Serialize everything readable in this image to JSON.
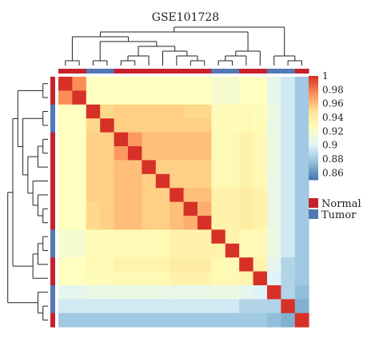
{
  "chart_data": {
    "type": "heatmap",
    "title": "GSE101728",
    "color_scale": {
      "min": 0.85,
      "max": 1.0,
      "ticks": [
        "1",
        "0.98",
        "0.96",
        "0.94",
        "0.92",
        "0.9",
        "0.88",
        "0.86"
      ],
      "colors": [
        "#4575b4",
        "#91bfdb",
        "#e0f3f8",
        "#ffffbf",
        "#fee090",
        "#fc8d59",
        "#d73027"
      ]
    },
    "groups": [
      "N",
      "N",
      "T",
      "T",
      "N",
      "N",
      "N",
      "N",
      "N",
      "N",
      "N",
      "T",
      "T",
      "N",
      "N",
      "T",
      "T",
      "N"
    ],
    "legend": [
      {
        "label": "Normal",
        "color": "#c4232c"
      },
      {
        "label": "Tumor",
        "color": "#5478b5"
      }
    ],
    "matrix": [
      [
        1.0,
        0.975,
        0.925,
        0.925,
        0.925,
        0.925,
        0.925,
        0.925,
        0.925,
        0.925,
        0.925,
        0.918,
        0.918,
        0.925,
        0.925,
        0.905,
        0.895,
        0.88
      ],
      [
        0.975,
        1.0,
        0.925,
        0.925,
        0.925,
        0.925,
        0.925,
        0.925,
        0.925,
        0.925,
        0.925,
        0.918,
        0.918,
        0.925,
        0.925,
        0.905,
        0.895,
        0.88
      ],
      [
        0.925,
        0.925,
        1.0,
        0.952,
        0.955,
        0.955,
        0.955,
        0.955,
        0.955,
        0.952,
        0.952,
        0.928,
        0.928,
        0.93,
        0.928,
        0.91,
        0.895,
        0.88
      ],
      [
        0.925,
        0.925,
        0.952,
        1.0,
        0.955,
        0.955,
        0.955,
        0.955,
        0.955,
        0.955,
        0.955,
        0.928,
        0.928,
        0.93,
        0.928,
        0.908,
        0.895,
        0.88
      ],
      [
        0.925,
        0.925,
        0.955,
        0.955,
        1.0,
        0.972,
        0.96,
        0.96,
        0.96,
        0.96,
        0.96,
        0.93,
        0.93,
        0.935,
        0.93,
        0.91,
        0.895,
        0.88
      ],
      [
        0.925,
        0.925,
        0.955,
        0.955,
        0.972,
        1.0,
        0.96,
        0.96,
        0.96,
        0.96,
        0.96,
        0.93,
        0.93,
        0.935,
        0.93,
        0.91,
        0.895,
        0.88
      ],
      [
        0.925,
        0.925,
        0.955,
        0.955,
        0.96,
        0.96,
        1.0,
        0.955,
        0.955,
        0.955,
        0.955,
        0.93,
        0.93,
        0.935,
        0.93,
        0.91,
        0.895,
        0.88
      ],
      [
        0.925,
        0.925,
        0.955,
        0.955,
        0.96,
        0.96,
        0.955,
        1.0,
        0.955,
        0.955,
        0.955,
        0.93,
        0.93,
        0.935,
        0.93,
        0.908,
        0.895,
        0.88
      ],
      [
        0.925,
        0.925,
        0.955,
        0.955,
        0.96,
        0.96,
        0.955,
        0.955,
        1.0,
        0.96,
        0.96,
        0.935,
        0.935,
        0.94,
        0.935,
        0.908,
        0.895,
        0.88
      ],
      [
        0.925,
        0.925,
        0.952,
        0.955,
        0.96,
        0.96,
        0.955,
        0.955,
        0.96,
        1.0,
        0.965,
        0.935,
        0.935,
        0.94,
        0.935,
        0.908,
        0.895,
        0.88
      ],
      [
        0.925,
        0.925,
        0.952,
        0.955,
        0.96,
        0.96,
        0.955,
        0.955,
        0.96,
        0.965,
        1.0,
        0.935,
        0.935,
        0.94,
        0.935,
        0.908,
        0.895,
        0.88
      ],
      [
        0.918,
        0.918,
        0.928,
        0.928,
        0.93,
        0.93,
        0.93,
        0.93,
        0.935,
        0.935,
        0.935,
        1.0,
        0.935,
        0.93,
        0.93,
        0.91,
        0.895,
        0.88
      ],
      [
        0.918,
        0.918,
        0.928,
        0.928,
        0.93,
        0.93,
        0.93,
        0.93,
        0.935,
        0.935,
        0.935,
        0.935,
        1.0,
        0.93,
        0.93,
        0.91,
        0.895,
        0.88
      ],
      [
        0.925,
        0.925,
        0.93,
        0.93,
        0.935,
        0.935,
        0.935,
        0.935,
        0.94,
        0.94,
        0.94,
        0.93,
        0.93,
        1.0,
        0.935,
        0.905,
        0.885,
        0.88
      ],
      [
        0.925,
        0.925,
        0.928,
        0.928,
        0.93,
        0.93,
        0.93,
        0.93,
        0.935,
        0.935,
        0.935,
        0.93,
        0.93,
        0.935,
        1.0,
        0.9,
        0.885,
        0.88
      ],
      [
        0.905,
        0.905,
        0.91,
        0.908,
        0.91,
        0.91,
        0.91,
        0.908,
        0.908,
        0.908,
        0.908,
        0.91,
        0.91,
        0.905,
        0.9,
        1.0,
        0.885,
        0.875
      ],
      [
        0.895,
        0.895,
        0.895,
        0.895,
        0.895,
        0.895,
        0.895,
        0.895,
        0.895,
        0.895,
        0.895,
        0.895,
        0.895,
        0.885,
        0.885,
        0.885,
        1.0,
        0.87
      ],
      [
        0.88,
        0.88,
        0.88,
        0.88,
        0.88,
        0.88,
        0.88,
        0.88,
        0.88,
        0.88,
        0.88,
        0.88,
        0.88,
        0.88,
        0.88,
        0.875,
        0.87,
        1.0
      ]
    ]
  }
}
